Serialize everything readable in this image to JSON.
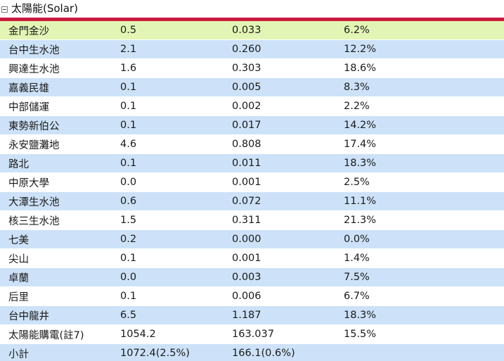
{
  "section": {
    "title": "太陽能(Solar)",
    "toggle_symbol": "minus"
  },
  "colors": {
    "accent_line": "#cc1a3c",
    "highlight_row": "#e3f5b5",
    "alt_row": "#cde2f8"
  },
  "rows": [
    {
      "name": "金門金沙",
      "capacity": "0.5",
      "generation": "0.033",
      "ratio": "6.2%",
      "style": "highlight"
    },
    {
      "name": "台中生水池",
      "capacity": "2.1",
      "generation": "0.260",
      "ratio": "12.2%",
      "style": "blue"
    },
    {
      "name": "興達生水池",
      "capacity": "1.6",
      "generation": "0.303",
      "ratio": "18.6%",
      "style": "white"
    },
    {
      "name": "嘉義民雄",
      "capacity": "0.1",
      "generation": "0.005",
      "ratio": "8.3%",
      "style": "blue"
    },
    {
      "name": "中部儲運",
      "capacity": "0.1",
      "generation": "0.002",
      "ratio": "2.2%",
      "style": "white"
    },
    {
      "name": "東勢新伯公",
      "capacity": "0.1",
      "generation": "0.017",
      "ratio": "14.2%",
      "style": "blue"
    },
    {
      "name": "永安鹽灘地",
      "capacity": "4.6",
      "generation": "0.808",
      "ratio": "17.4%",
      "style": "white"
    },
    {
      "name": "路北",
      "capacity": "0.1",
      "generation": "0.011",
      "ratio": "18.3%",
      "style": "blue"
    },
    {
      "name": "中原大學",
      "capacity": "0.0",
      "generation": "0.001",
      "ratio": "2.5%",
      "style": "white"
    },
    {
      "name": "大潭生水池",
      "capacity": "0.6",
      "generation": "0.072",
      "ratio": "11.1%",
      "style": "blue"
    },
    {
      "name": "核三生水池",
      "capacity": "1.5",
      "generation": "0.311",
      "ratio": "21.3%",
      "style": "white"
    },
    {
      "name": "七美",
      "capacity": "0.2",
      "generation": "0.000",
      "ratio": "0.0%",
      "style": "blue"
    },
    {
      "name": "尖山",
      "capacity": "0.1",
      "generation": "0.001",
      "ratio": "1.4%",
      "style": "white"
    },
    {
      "name": "卓蘭",
      "capacity": "0.0",
      "generation": "0.003",
      "ratio": "7.5%",
      "style": "blue"
    },
    {
      "name": "后里",
      "capacity": "0.1",
      "generation": "0.006",
      "ratio": "6.7%",
      "style": "white"
    },
    {
      "name": "台中龍井",
      "capacity": "6.5",
      "generation": "1.187",
      "ratio": "18.3%",
      "style": "blue"
    },
    {
      "name": "太陽能購電(註7)",
      "capacity": "1054.2",
      "generation": "163.037",
      "ratio": "15.5%",
      "style": "white"
    },
    {
      "name": "小計",
      "capacity": "1072.4(2.5%)",
      "generation": "166.1(0.6%)",
      "ratio": "",
      "style": "blue"
    }
  ]
}
